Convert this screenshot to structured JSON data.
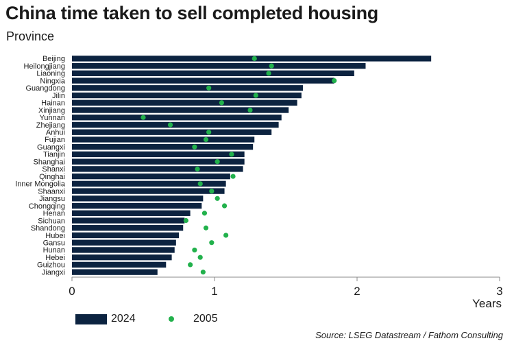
{
  "title": "China time taken to sell completed housing",
  "subtitle": "Province",
  "source": "Source: LSEG Datastream / Fathom Consulting",
  "colors": {
    "bar": "#0c2340",
    "dot": "#22b14c",
    "text": "#1a1a1a"
  },
  "chart_data": {
    "type": "bar",
    "orientation": "horizontal",
    "categories": [
      "Beijing",
      "Heilongjiang",
      "Liaoning",
      "Ningxia",
      "Guangdong",
      "Jilin",
      "Hainan",
      "Xinjiang",
      "Yunnan",
      "Zhejiang",
      "Anhui",
      "Fujian",
      "Guangxi",
      "Tianjin",
      "Shanghai",
      "Shanxi",
      "Qinghai",
      "Inner Mongolia",
      "Shaanxi",
      "Jiangsu",
      "Chongqing",
      "Henan",
      "Sichuan",
      "Shandong",
      "Hubei",
      "Gansu",
      "Hunan",
      "Hebei",
      "Guizhou",
      "Jiangxi"
    ],
    "series": [
      {
        "name": "2024",
        "type": "bar",
        "values": [
          2.52,
          2.06,
          1.98,
          1.84,
          1.62,
          1.61,
          1.58,
          1.52,
          1.47,
          1.45,
          1.4,
          1.28,
          1.27,
          1.21,
          1.21,
          1.2,
          1.11,
          1.08,
          1.07,
          0.92,
          0.91,
          0.83,
          0.79,
          0.78,
          0.75,
          0.73,
          0.72,
          0.7,
          0.66,
          0.6
        ]
      },
      {
        "name": "2005",
        "type": "scatter",
        "values": [
          1.28,
          1.4,
          1.38,
          1.84,
          0.96,
          1.29,
          1.05,
          1.25,
          0.5,
          0.69,
          0.96,
          0.94,
          0.86,
          1.12,
          1.02,
          0.88,
          1.13,
          0.9,
          0.98,
          1.02,
          1.07,
          0.93,
          0.8,
          0.94,
          1.08,
          0.98,
          0.86,
          0.9,
          0.83,
          0.92
        ]
      }
    ],
    "xlabel": "Years",
    "xlim": [
      0,
      3
    ],
    "xticks": [
      "0",
      "1",
      "2",
      "3"
    ],
    "grid": false,
    "legend": "bottom-left"
  }
}
